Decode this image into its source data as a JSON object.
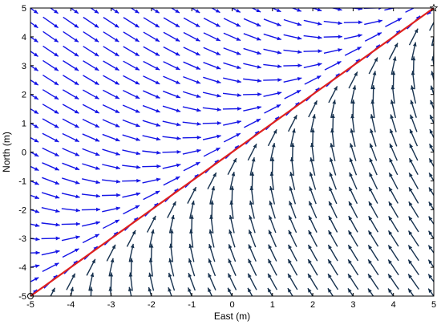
{
  "chart_data": {
    "type": "quiver",
    "title": "",
    "xlabel": "East (m)",
    "ylabel": "North (m)",
    "xlim": [
      -5,
      5
    ],
    "ylim": [
      -5,
      5
    ],
    "x_ticks": [
      "-5",
      "-4",
      "-3",
      "-2",
      "-1",
      "0",
      "1",
      "2",
      "3",
      "4",
      "5"
    ],
    "y_ticks": [
      "-5",
      "-4",
      "-3",
      "-2",
      "-1",
      "0",
      "1",
      "2",
      "3",
      "4",
      "5"
    ],
    "grid": false,
    "vector_field": {
      "x_start": -5,
      "x_end": 5,
      "x_step": 0.5,
      "y_start": -5,
      "y_end": 5,
      "y_step": 0.5,
      "description": "unit-direction vectors that converge onto the path line y = x and point toward the end point (5, 5)",
      "color_above_path": "#1515e6",
      "color_below_path": "#17324f"
    },
    "path": {
      "start": [
        -5,
        -5
      ],
      "end": [
        5,
        5
      ],
      "color": "#e0221e"
    },
    "start_marker": {
      "x": -5,
      "y": -5,
      "symbol": "circle"
    },
    "goal_marker": {
      "x": 5,
      "y": 5,
      "symbol": "star"
    }
  }
}
